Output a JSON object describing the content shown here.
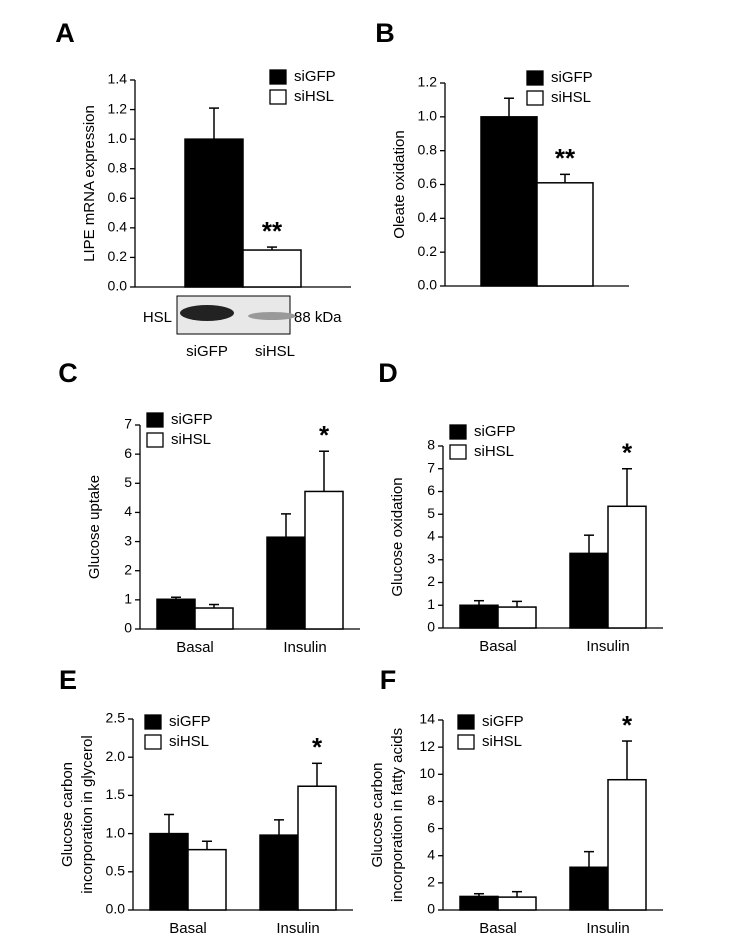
{
  "chart_data": [
    {
      "type": "bar",
      "panel": "A",
      "ylabel": [
        "LIPE mRNA expression"
      ],
      "categories": [
        null
      ],
      "series": [
        {
          "name": "siGFP",
          "color": "#000000",
          "values": [
            1.0
          ],
          "errors": [
            0.21
          ],
          "significance": [
            null
          ]
        },
        {
          "name": "siHSL",
          "color": "#ffffff",
          "values": [
            0.25
          ],
          "errors": [
            0.02
          ],
          "significance": [
            "**"
          ]
        }
      ],
      "ylim": [
        0,
        1.4
      ],
      "yticks": [
        {
          "value": 0,
          "label": "0.0"
        },
        0.2,
        0.4,
        0.6,
        0.8,
        {
          "value": 1,
          "label": "1.0"
        },
        1.2,
        1.4
      ],
      "blot": {
        "label": "HSL",
        "size": "88 kDa",
        "lanes": [
          "siGFP",
          "siHSL"
        ]
      }
    },
    {
      "type": "bar",
      "panel": "B",
      "ylabel": [
        "Oleate oxidation"
      ],
      "categories": [
        null
      ],
      "series": [
        {
          "name": "siGFP",
          "color": "#000000",
          "values": [
            1.0
          ],
          "errors": [
            0.11
          ],
          "significance": [
            null
          ]
        },
        {
          "name": "siHSL",
          "color": "#ffffff",
          "values": [
            0.61
          ],
          "errors": [
            0.05
          ],
          "significance": [
            "**"
          ]
        }
      ],
      "ylim": [
        0,
        1.2
      ],
      "yticks": [
        {
          "value": 0,
          "label": "0.0"
        },
        0.2,
        0.4,
        0.6,
        0.8,
        {
          "value": 1,
          "label": "1.0"
        },
        1.2
      ]
    },
    {
      "type": "bar",
      "panel": "C",
      "ylabel": [
        "Glucose uptake"
      ],
      "categories": [
        "Basal",
        "Insulin"
      ],
      "series": [
        {
          "name": "siGFP",
          "color": "#000000",
          "values": [
            1.02,
            3.15
          ],
          "errors": [
            0.07,
            0.8
          ],
          "significance": [
            null,
            null
          ]
        },
        {
          "name": "siHSL",
          "color": "#ffffff",
          "values": [
            0.72,
            4.72
          ],
          "errors": [
            0.12,
            1.38
          ],
          "significance": [
            null,
            "*"
          ]
        }
      ],
      "ylim": [
        0,
        7
      ],
      "yticks": [
        0,
        1,
        2,
        3,
        4,
        5,
        6,
        7
      ]
    },
    {
      "type": "bar",
      "panel": "D",
      "ylabel": [
        "Glucose oxidation"
      ],
      "categories": [
        "Basal",
        "Insulin"
      ],
      "series": [
        {
          "name": "siGFP",
          "color": "#000000",
          "values": [
            1.0,
            3.28
          ],
          "errors": [
            0.2,
            0.8
          ],
          "significance": [
            null,
            null
          ]
        },
        {
          "name": "siHSL",
          "color": "#ffffff",
          "values": [
            0.92,
            5.35
          ],
          "errors": [
            0.25,
            1.65
          ],
          "significance": [
            null,
            "*"
          ]
        }
      ],
      "ylim": [
        0,
        8
      ],
      "yticks": [
        0,
        1,
        2,
        3,
        4,
        5,
        6,
        7,
        8
      ]
    },
    {
      "type": "bar",
      "panel": "E",
      "ylabel": [
        "Glucose carbon",
        "incorporation in glycerol"
      ],
      "categories": [
        "Basal",
        "Insulin"
      ],
      "series": [
        {
          "name": "siGFP",
          "color": "#000000",
          "values": [
            1.0,
            0.98
          ],
          "errors": [
            0.25,
            0.2
          ],
          "significance": [
            null,
            null
          ]
        },
        {
          "name": "siHSL",
          "color": "#ffffff",
          "values": [
            0.79,
            1.62
          ],
          "errors": [
            0.11,
            0.3
          ],
          "significance": [
            null,
            "*"
          ]
        }
      ],
      "ylim": [
        0,
        2.5
      ],
      "yticks": [
        {
          "value": 0,
          "label": "0.0"
        },
        0.5,
        {
          "value": 1,
          "label": "1.0"
        },
        1.5,
        {
          "value": 2,
          "label": "2.0"
        },
        2.5
      ]
    },
    {
      "type": "bar",
      "panel": "F",
      "ylabel": [
        "Glucose carbon",
        "incorporation in fatty acids"
      ],
      "categories": [
        "Basal",
        "Insulin"
      ],
      "series": [
        {
          "name": "siGFP",
          "color": "#000000",
          "values": [
            1.0,
            3.15
          ],
          "errors": [
            0.2,
            1.15
          ],
          "significance": [
            null,
            null
          ]
        },
        {
          "name": "siHSL",
          "color": "#ffffff",
          "values": [
            0.95,
            9.6
          ],
          "errors": [
            0.4,
            2.85
          ],
          "significance": [
            null,
            "*"
          ]
        }
      ],
      "ylim": [
        0,
        14
      ],
      "yticks": [
        0,
        2,
        4,
        6,
        8,
        10,
        12,
        14
      ]
    }
  ]
}
